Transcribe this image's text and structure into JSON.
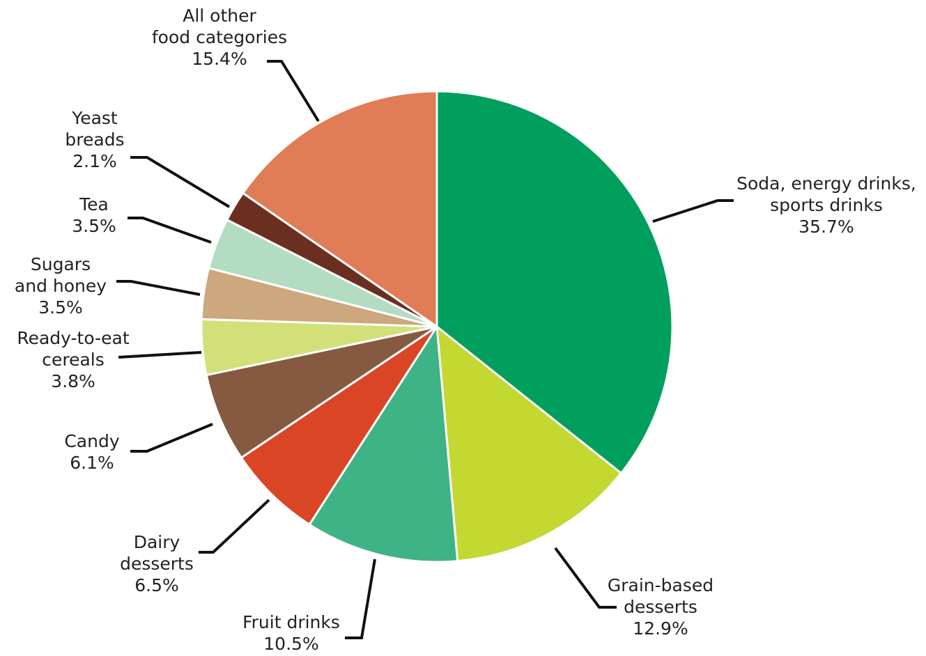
{
  "chart_data": {
    "type": "pie",
    "start_angle_deg": 0,
    "direction": "clockwise",
    "unit": "%",
    "slices": [
      {
        "label": [
          "Soda, energy drinks,",
          "sports drinks"
        ],
        "value": 35.7,
        "value_text": "35.7%",
        "color": "#009f5d"
      },
      {
        "label": [
          "Grain-based",
          "desserts"
        ],
        "value": 12.9,
        "value_text": "12.9%",
        "color": "#c3d830"
      },
      {
        "label": [
          "Fruit drinks"
        ],
        "value": 10.5,
        "value_text": "10.5%",
        "color": "#3db386"
      },
      {
        "label": [
          "Dairy",
          "desserts"
        ],
        "value": 6.5,
        "value_text": "6.5%",
        "color": "#da4526"
      },
      {
        "label": [
          "Candy"
        ],
        "value": 6.1,
        "value_text": "6.1%",
        "color": "#865a40"
      },
      {
        "label": [
          "Ready-to-eat",
          "cereals"
        ],
        "value": 3.8,
        "value_text": "3.8%",
        "color": "#d3e07a"
      },
      {
        "label": [
          "Sugars",
          "and honey"
        ],
        "value": 3.5,
        "value_text": "3.5%",
        "color": "#cda77d"
      },
      {
        "label": [
          "Tea"
        ],
        "value": 3.5,
        "value_text": "3.5%",
        "color": "#b4dcc3"
      },
      {
        "label": [
          "Yeast",
          "breads"
        ],
        "value": 2.1,
        "value_text": "2.1%",
        "color": "#6b2f22"
      },
      {
        "label": [
          "All other",
          "food categories"
        ],
        "value": 15.4,
        "value_text": "15.4%",
        "color": "#e07c56"
      }
    ]
  }
}
